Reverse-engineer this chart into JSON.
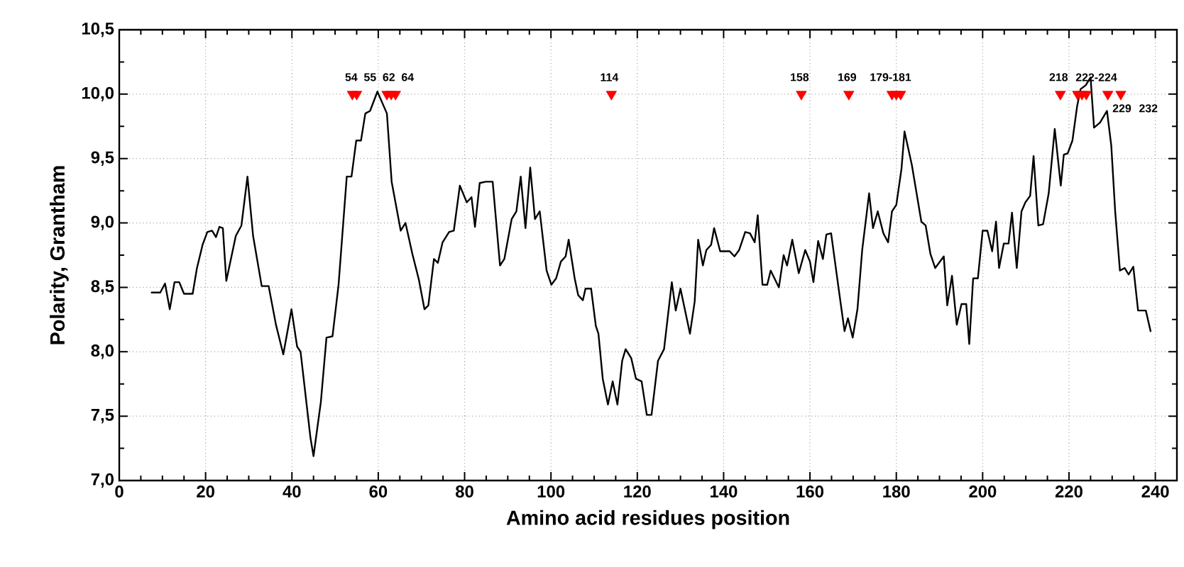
{
  "chart_data": {
    "type": "line",
    "xlabel": "Amino acid residues position",
    "ylabel": "Polarity, Grantham",
    "xlim": [
      0,
      245
    ],
    "ylim": [
      7.0,
      10.5
    ],
    "xticks": [
      0,
      20,
      40,
      60,
      80,
      100,
      120,
      140,
      160,
      180,
      200,
      220,
      240
    ],
    "yticks": [
      {
        "value": 7.0,
        "label": "7,0"
      },
      {
        "value": 7.5,
        "label": "7,5"
      },
      {
        "value": 8.0,
        "label": "8,0"
      },
      {
        "value": 8.5,
        "label": "8,5"
      },
      {
        "value": 9.0,
        "label": "9,0"
      },
      {
        "value": 9.5,
        "label": "9,5"
      },
      {
        "value": 10.0,
        "label": "10,0"
      },
      {
        "value": 10.5,
        "label": "10,5"
      }
    ],
    "grid": true,
    "series": [
      {
        "color": "#000000",
        "marker": "none",
        "line_style": "solid",
        "x": [
          7.5,
          9.5,
          10.6,
          11.7,
          12.8,
          13.9,
          15,
          17,
          18,
          19.3,
          20.4,
          21.5,
          22.4,
          23.2,
          24,
          24.8,
          27,
          28.3,
          29.7,
          31,
          33,
          34.6,
          36.3,
          38,
          39.9,
          41.2,
          42,
          44.3,
          45,
          46.7,
          48,
          49.4,
          50.8,
          52.7,
          53.8,
          54.9,
          56,
          57,
          58.1,
          59.8,
          62,
          63.1,
          65.2,
          66.3,
          67.9,
          69.4,
          70.7,
          71.6,
          72.9,
          73.8,
          74.9,
          76.4,
          77.5,
          78.9,
          80.5,
          81.6,
          82.4,
          83.5,
          84.9,
          86.5,
          88.2,
          89.2,
          90.9,
          92,
          93,
          94.1,
          95.2,
          96.3,
          97.4,
          99,
          100.1,
          101.2,
          102.3,
          103.4,
          104.1,
          105.5,
          106.3,
          107.4,
          108,
          109.3,
          110.4,
          111,
          112,
          113.2,
          114.3,
          115.4,
          116.5,
          117.3,
          118.6,
          119.7,
          121,
          122.2,
          123.3,
          124.8,
          126.2,
          128,
          128.9,
          130,
          132.2,
          133.3,
          134.1,
          135.2,
          136,
          137.1,
          137.8,
          139.2,
          141.4,
          142.5,
          143.6,
          145,
          146.1,
          147.2,
          147.9,
          149,
          150.1,
          150.9,
          152.8,
          153.9,
          154.7,
          155.9,
          157.4,
          158.9,
          160,
          160.8,
          161.9,
          163,
          163.8,
          164.9,
          166.6,
          168,
          168.8,
          169.9,
          171,
          172.1,
          173.7,
          174.6,
          175.7,
          177,
          178.1,
          179,
          180,
          181.2,
          181.9,
          183.6,
          185.8,
          186.8,
          187.9,
          189,
          191,
          191.8,
          192.9,
          194,
          195.1,
          196.2,
          196.9,
          197.8,
          198.9,
          200,
          201.1,
          202.2,
          203.1,
          203.8,
          204.9,
          206,
          206.8,
          207.9,
          209,
          209.9,
          211,
          211.8,
          212.9,
          214,
          215.3,
          216.7,
          218.1,
          218.8,
          219.7,
          220.8,
          221.9,
          222.7,
          223.9,
          225,
          225.8,
          227.2,
          228.8,
          229.8,
          230.7,
          231.8,
          232.9,
          233.8,
          234.9,
          236,
          237.8,
          238.9
        ],
        "values": [
          8.46,
          8.46,
          8.53,
          8.33,
          8.54,
          8.54,
          8.45,
          8.45,
          8.65,
          8.83,
          8.93,
          8.94,
          8.89,
          8.97,
          8.96,
          8.55,
          8.9,
          8.98,
          9.36,
          8.9,
          8.51,
          8.51,
          8.21,
          7.98,
          8.33,
          8.04,
          8.0,
          7.33,
          7.19,
          7.61,
          8.11,
          8.12,
          8.52,
          9.36,
          9.36,
          9.64,
          9.64,
          9.85,
          9.87,
          10.02,
          9.85,
          9.32,
          8.94,
          9.0,
          8.76,
          8.56,
          8.33,
          8.36,
          8.72,
          8.69,
          8.85,
          8.93,
          8.94,
          9.29,
          9.16,
          9.2,
          8.97,
          9.31,
          9.32,
          9.32,
          8.67,
          8.72,
          9.03,
          9.09,
          9.36,
          8.96,
          9.43,
          9.03,
          9.09,
          8.63,
          8.52,
          8.57,
          8.7,
          8.74,
          8.87,
          8.57,
          8.44,
          8.4,
          8.49,
          8.49,
          8.2,
          8.14,
          7.79,
          7.59,
          7.77,
          7.59,
          7.93,
          8.02,
          7.95,
          7.79,
          7.77,
          7.51,
          7.51,
          7.93,
          8.02,
          8.54,
          8.32,
          8.49,
          8.14,
          8.39,
          8.87,
          8.67,
          8.79,
          8.83,
          8.96,
          8.78,
          8.78,
          8.74,
          8.79,
          8.93,
          8.92,
          8.85,
          9.06,
          8.52,
          8.52,
          8.63,
          8.5,
          8.75,
          8.67,
          8.87,
          8.61,
          8.79,
          8.7,
          8.54,
          8.86,
          8.72,
          8.91,
          8.92,
          8.5,
          8.16,
          8.26,
          8.11,
          8.33,
          8.79,
          9.23,
          8.96,
          9.09,
          8.92,
          8.85,
          9.09,
          9.14,
          9.42,
          9.71,
          9.45,
          9.01,
          8.98,
          8.76,
          8.65,
          8.74,
          8.36,
          8.59,
          8.21,
          8.37,
          8.37,
          8.06,
          8.57,
          8.57,
          8.94,
          8.94,
          8.78,
          9.01,
          8.65,
          8.84,
          8.84,
          9.08,
          8.65,
          9.09,
          9.16,
          9.21,
          9.52,
          8.98,
          8.99,
          9.23,
          9.73,
          9.29,
          9.53,
          9.54,
          9.64,
          9.91,
          10.04,
          10.07,
          10.13,
          9.74,
          9.78,
          9.87,
          9.6,
          9.09,
          8.63,
          8.65,
          8.6,
          8.66,
          8.32,
          8.32,
          8.16
        ]
      },
      {
        "type": "scatter",
        "color": "#ff0000",
        "marker": "triangle",
        "x": [
          54,
          55,
          62,
          63,
          64,
          114,
          158,
          169,
          179,
          180,
          181,
          218,
          222,
          223,
          224,
          229,
          232
        ],
        "values": [
          10.0,
          10.0,
          10.0,
          10.0,
          10.0,
          10.0,
          10.0,
          10.0,
          10.0,
          10.0,
          10.0,
          10.0,
          10.0,
          10.0,
          10.0,
          10.0,
          10.0
        ]
      }
    ],
    "annotations": [
      {
        "text": "54",
        "x": 54,
        "y": 10.0
      },
      {
        "text": "55",
        "x": 55,
        "y": 10.0
      },
      {
        "text": "62",
        "x": 62,
        "y": 10.0
      },
      {
        "text": "64",
        "x": 64,
        "y": 10.0
      },
      {
        "text": "114",
        "x": 114,
        "y": 10.0
      },
      {
        "text": "158",
        "x": 158,
        "y": 10.0
      },
      {
        "text": "169",
        "x": 169,
        "y": 10.0
      },
      {
        "text": "179-181",
        "x": 180,
        "y": 10.0
      },
      {
        "text": "218",
        "x": 218,
        "y": 10.0
      },
      {
        "text": "222-224",
        "x": 223,
        "y": 10.0
      },
      {
        "text": "229",
        "x": 229,
        "y": 10.0
      },
      {
        "text": "232",
        "x": 232,
        "y": 10.0
      }
    ]
  }
}
